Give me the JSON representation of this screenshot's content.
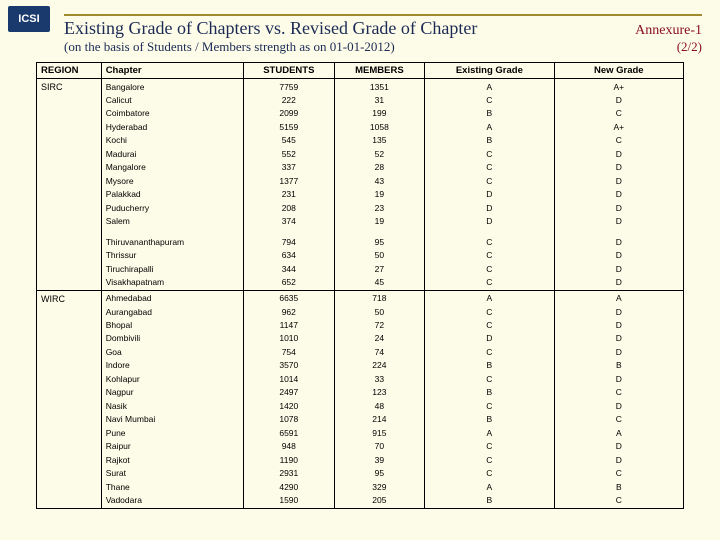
{
  "logo_text": "ICSI",
  "title_main": "Existing Grade of Chapters vs. Revised Grade of Chapter",
  "annex_label": "Annexure-1",
  "subtitle": "(on the basis of Students / Members strength as on 01-01-2012)",
  "pager": "(2/2)",
  "columns": {
    "region": "REGION",
    "chapter": "Chapter",
    "students": "STUDENTS",
    "members": "MEMBERS",
    "existing": "Existing Grade",
    "newg": "New Grade"
  },
  "regions": [
    {
      "name": "SIRC",
      "rows": [
        {
          "ch": "Bangalore",
          "s": "7759",
          "m": "1351",
          "e": "A",
          "n": "A+"
        },
        {
          "ch": "Calicut",
          "s": "222",
          "m": "31",
          "e": "C",
          "n": "D"
        },
        {
          "ch": "Coimbatore",
          "s": "2099",
          "m": "199",
          "e": "B",
          "n": "C"
        },
        {
          "ch": "Hyderabad",
          "s": "5159",
          "m": "1058",
          "e": "A",
          "n": "A+"
        },
        {
          "ch": "Kochi",
          "s": "545",
          "m": "135",
          "e": "B",
          "n": "C"
        },
        {
          "ch": "Madurai",
          "s": "552",
          "m": "52",
          "e": "C",
          "n": "D"
        },
        {
          "ch": "Mangalore",
          "s": "337",
          "m": "28",
          "e": "C",
          "n": "D"
        },
        {
          "ch": "Mysore",
          "s": "1377",
          "m": "43",
          "e": "C",
          "n": "D"
        },
        {
          "ch": "Palakkad",
          "s": "231",
          "m": "19",
          "e": "D",
          "n": "D"
        },
        {
          "ch": "Puducherry",
          "s": "208",
          "m": "23",
          "e": "D",
          "n": "D"
        },
        {
          "ch": "Salem",
          "s": "374",
          "m": "19",
          "e": "D",
          "n": "D"
        },
        {
          "ch": "Thiruvananthapuram",
          "s": "794",
          "m": "95",
          "e": "C",
          "n": "D"
        },
        {
          "ch": "Thrissur",
          "s": "634",
          "m": "50",
          "e": "C",
          "n": "D"
        },
        {
          "ch": "Tiruchirapalli",
          "s": "344",
          "m": "27",
          "e": "C",
          "n": "D"
        },
        {
          "ch": "Visakhapatnam",
          "s": "652",
          "m": "45",
          "e": "C",
          "n": "D"
        }
      ],
      "gap_before_index": 11
    },
    {
      "name": "WIRC",
      "rows": [
        {
          "ch": "Ahmedabad",
          "s": "6635",
          "m": "718",
          "e": "A",
          "n": "A"
        },
        {
          "ch": "Aurangabad",
          "s": "962",
          "m": "50",
          "e": "C",
          "n": "D"
        },
        {
          "ch": "Bhopal",
          "s": "1147",
          "m": "72",
          "e": "C",
          "n": "D"
        },
        {
          "ch": "Dombivili",
          "s": "1010",
          "m": "24",
          "e": "D",
          "n": "D"
        },
        {
          "ch": "Goa",
          "s": "754",
          "m": "74",
          "e": "C",
          "n": "D"
        },
        {
          "ch": "Indore",
          "s": "3570",
          "m": "224",
          "e": "B",
          "n": "B"
        },
        {
          "ch": "Kohlapur",
          "s": "1014",
          "m": "33",
          "e": "C",
          "n": "D"
        },
        {
          "ch": "Nagpur",
          "s": "2497",
          "m": "123",
          "e": "B",
          "n": "C"
        },
        {
          "ch": "Nasik",
          "s": "1420",
          "m": "48",
          "e": "C",
          "n": "D"
        },
        {
          "ch": "Navi Mumbai",
          "s": "1078",
          "m": "214",
          "e": "B",
          "n": "C"
        },
        {
          "ch": "Pune",
          "s": "6591",
          "m": "915",
          "e": "A",
          "n": "A"
        },
        {
          "ch": "Raipur",
          "s": "948",
          "m": "70",
          "e": "C",
          "n": "D"
        },
        {
          "ch": "Rajkot",
          "s": "1190",
          "m": "39",
          "e": "C",
          "n": "D"
        },
        {
          "ch": "Surat",
          "s": "2931",
          "m": "95",
          "e": "C",
          "n": "C"
        },
        {
          "ch": "Thane",
          "s": "4290",
          "m": "329",
          "e": "A",
          "n": "B"
        },
        {
          "ch": "Vadodara",
          "s": "1590",
          "m": "205",
          "e": "B",
          "n": "C"
        }
      ]
    }
  ]
}
